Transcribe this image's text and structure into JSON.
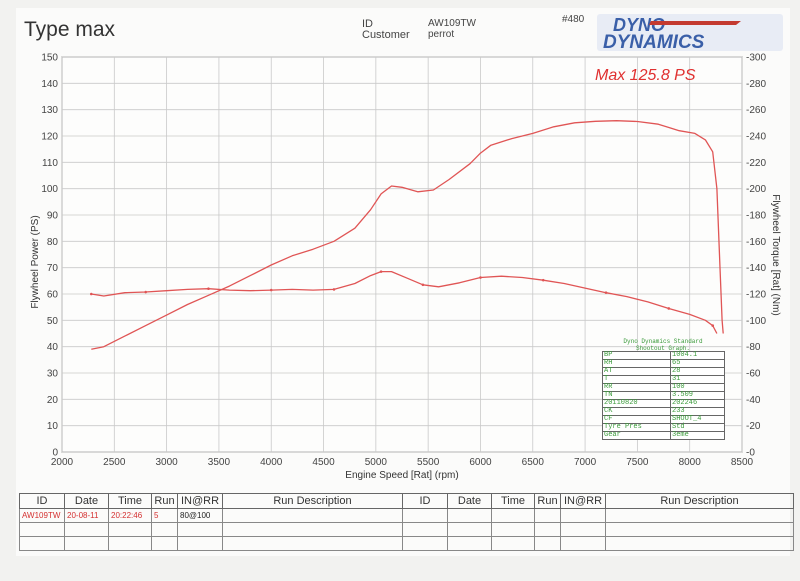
{
  "header": {
    "title": "Type max",
    "id_label": "ID",
    "id_value": "AW109TW",
    "customer_label": "Customer",
    "customer_value": "perrot",
    "run_number": "#480"
  },
  "logo": {
    "line1": "DYNO",
    "line2": "DYNAMICS",
    "colors": {
      "blue": "#3a5fa8",
      "red": "#c43a30"
    }
  },
  "colors": {
    "curve": "#e05555",
    "annotation": "#e03030",
    "grid": "#c9c9c9",
    "info_text": "#3a9a3a"
  },
  "chart_data": {
    "type": "line",
    "annotation": "Max 125.8 PS",
    "xlabel": "Engine Speed [Rat] (rpm)",
    "ylabel_left": "Flywheel Power (PS)",
    "ylabel_right": "Flywheel Torque [Rat] (Nm)",
    "xlim": [
      2000,
      8500
    ],
    "ylim_left": [
      0,
      150
    ],
    "ylim_right": [
      0,
      300
    ],
    "x_ticks": [
      2000,
      2500,
      3000,
      3500,
      4000,
      4500,
      5000,
      5500,
      6000,
      6500,
      7000,
      7500,
      8000,
      8500
    ],
    "y_ticks_left": [
      0,
      10,
      20,
      30,
      40,
      50,
      60,
      70,
      80,
      90,
      100,
      110,
      120,
      130,
      140,
      150
    ],
    "y_ticks_right": [
      0,
      20,
      40,
      60,
      80,
      100,
      120,
      140,
      160,
      180,
      200,
      220,
      240,
      260,
      280,
      300
    ],
    "grid": true,
    "series": [
      {
        "axis": "left",
        "x": [
          2280,
          2400,
          2600,
          2800,
          3000,
          3200,
          3400,
          3600,
          3800,
          4000,
          4200,
          4400,
          4600,
          4800,
          4950,
          5050,
          5150,
          5250,
          5400,
          5550,
          5700,
          5900,
          6000,
          6100,
          6300,
          6500,
          6700,
          6900,
          7100,
          7300,
          7500,
          7700,
          7900,
          8050,
          8150,
          8220,
          8260,
          8290,
          8310,
          8320
        ],
        "y": [
          39,
          40,
          44,
          48,
          52,
          56,
          59.5,
          63,
          67,
          71,
          74.5,
          77,
          80,
          85,
          92,
          98,
          101,
          100.5,
          98.8,
          99.5,
          103.5,
          109.5,
          113.5,
          116.5,
          119,
          121,
          123.5,
          125,
          125.6,
          125.8,
          125.5,
          124.5,
          122,
          121,
          118.5,
          114,
          100,
          70,
          50,
          45
        ]
      },
      {
        "axis": "right",
        "x": [
          2280,
          2400,
          2600,
          2800,
          3000,
          3200,
          3400,
          3600,
          3800,
          4000,
          4200,
          4400,
          4600,
          4800,
          4950,
          5050,
          5150,
          5300,
          5450,
          5600,
          5800,
          6000,
          6200,
          6400,
          6600,
          6800,
          7000,
          7200,
          7400,
          7600,
          7800,
          8000,
          8150,
          8220,
          8260
        ],
        "y": [
          120,
          118.5,
          121,
          121.5,
          122.5,
          123.5,
          124,
          123,
          122.5,
          123,
          123.5,
          123,
          123.5,
          128,
          134,
          137,
          137,
          132,
          127,
          125.5,
          128.5,
          132.5,
          133.5,
          132.5,
          130.5,
          128,
          124.5,
          121,
          118,
          114,
          109,
          104.5,
          100,
          96,
          90
        ]
      }
    ]
  },
  "info_box": {
    "title_line1": "Dyno Dynamics Standard",
    "title_line2": "Shootout Graph.",
    "rows": [
      [
        "BP",
        "1004.1"
      ],
      [
        "RH",
        "65"
      ],
      [
        "AT",
        "28"
      ],
      [
        "T",
        "31"
      ],
      [
        "RR",
        "100"
      ],
      [
        "TN",
        "3.509"
      ],
      [
        "20110820",
        "202246"
      ],
      [
        "CK",
        "233"
      ],
      [
        "CF",
        "SHOOT_4"
      ],
      [
        "Tyre Pres",
        "Std"
      ],
      [
        "Gear",
        "3eme"
      ]
    ]
  },
  "run_table": {
    "headers": [
      "ID",
      "Date",
      "Time",
      "Run",
      "IN@RR",
      "Run Description",
      "ID",
      "Date",
      "Time",
      "Run",
      "IN@RR",
      "Run Description"
    ],
    "rows": [
      [
        "AW109TW",
        "20-08-11",
        "20:22:46",
        "5",
        "80@100",
        "",
        "",
        "",
        "",
        "",
        "",
        ""
      ],
      [
        "",
        "",
        "",
        "",
        "",
        "",
        "",
        "",
        "",
        "",
        "",
        ""
      ]
    ]
  }
}
